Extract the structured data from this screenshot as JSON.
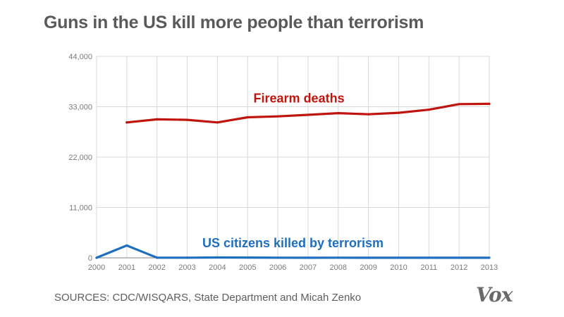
{
  "title": "Guns in the US kill more people than terrorism",
  "source": "SOURCES: CDC/WISQARS, State Department and Micah Zenko",
  "logo": "Vox",
  "colors": {
    "firearm": "#c0150f",
    "terrorism": "#1f6fbf",
    "grid": "#d9d9d9",
    "axis": "#9a9a9a",
    "tick_text": "#7a7a7a"
  },
  "chart_data": {
    "type": "line",
    "title": "Guns in the US kill more people than terrorism",
    "xlabel": "",
    "ylabel": "",
    "x": [
      2000,
      2001,
      2002,
      2003,
      2004,
      2005,
      2006,
      2007,
      2008,
      2009,
      2010,
      2011,
      2012,
      2013
    ],
    "xlim": [
      2000,
      2013
    ],
    "ylim": [
      0,
      44000
    ],
    "yticks": [
      0,
      11000,
      22000,
      33000,
      44000
    ],
    "ytick_labels": [
      "0",
      "11,000",
      "22,000",
      "33,000",
      "44,000"
    ],
    "grid": true,
    "series": [
      {
        "name": "Firearm deaths",
        "color": "#c0150f",
        "x": [
          2001,
          2002,
          2003,
          2004,
          2005,
          2006,
          2007,
          2008,
          2009,
          2010,
          2011,
          2012,
          2013
        ],
        "values": [
          29573,
          30242,
          30136,
          29569,
          30694,
          30896,
          31224,
          31593,
          31347,
          31672,
          32351,
          33563,
          33636
        ],
        "label_x": 2006.7,
        "label_y": 35000
      },
      {
        "name": "US citizens killed by terrorism",
        "color": "#1f6fbf",
        "x": [
          2000,
          2001,
          2002,
          2003,
          2004,
          2005,
          2006,
          2007,
          2008,
          2009,
          2010,
          2011,
          2012,
          2013
        ],
        "values": [
          23,
          2689,
          27,
          35,
          74,
          56,
          28,
          19,
          33,
          9,
          15,
          17,
          10,
          16
        ],
        "label_x": 2006.5,
        "label_y": 3400
      }
    ]
  }
}
